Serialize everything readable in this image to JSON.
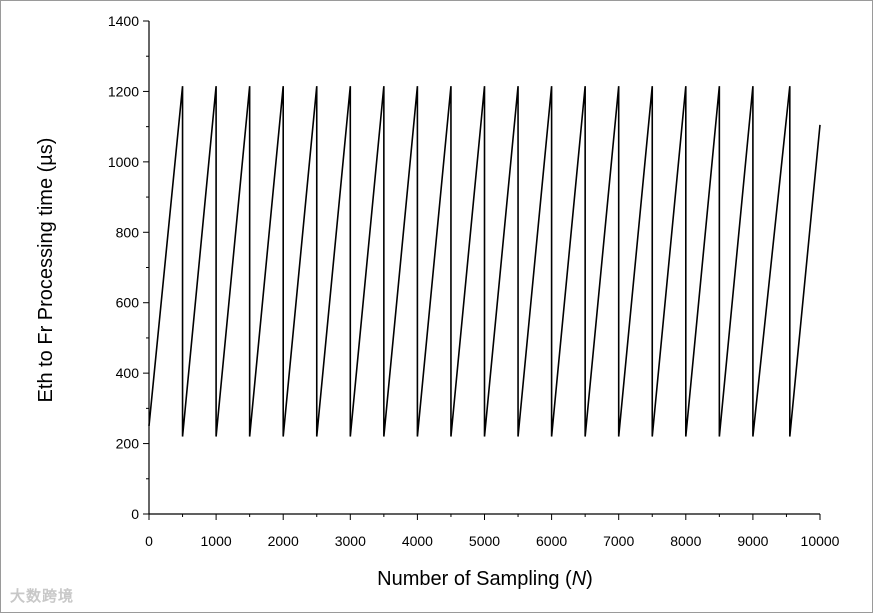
{
  "chart_data": {
    "type": "line",
    "xlabel": "Number of Sampling",
    "xlabel_var": "N",
    "ylabel": "Eth to Fr Processing time (µs)",
    "xlim": [
      0,
      10000
    ],
    "ylim": [
      0,
      1400
    ],
    "x_ticks": [
      0,
      1000,
      2000,
      3000,
      4000,
      5000,
      6000,
      7000,
      8000,
      9000,
      10000
    ],
    "y_ticks": [
      0,
      200,
      400,
      600,
      800,
      1000,
      1200,
      1400
    ],
    "grid": false,
    "series": [
      {
        "color": "#000000",
        "points": [
          [
            0,
            250
          ],
          [
            500,
            1215
          ],
          [
            500,
            220
          ],
          [
            1000,
            1215
          ],
          [
            1000,
            220
          ],
          [
            1500,
            1215
          ],
          [
            1500,
            220
          ],
          [
            2000,
            1215
          ],
          [
            2000,
            220
          ],
          [
            2500,
            1215
          ],
          [
            2500,
            220
          ],
          [
            3000,
            1215
          ],
          [
            3000,
            220
          ],
          [
            3500,
            1215
          ],
          [
            3500,
            220
          ],
          [
            4000,
            1215
          ],
          [
            4000,
            220
          ],
          [
            4500,
            1215
          ],
          [
            4500,
            220
          ],
          [
            5000,
            1215
          ],
          [
            5000,
            220
          ],
          [
            5500,
            1215
          ],
          [
            5500,
            220
          ],
          [
            6000,
            1215
          ],
          [
            6000,
            220
          ],
          [
            6500,
            1215
          ],
          [
            6500,
            220
          ],
          [
            7000,
            1215
          ],
          [
            7000,
            220
          ],
          [
            7500,
            1215
          ],
          [
            7500,
            220
          ],
          [
            8000,
            1215
          ],
          [
            8000,
            220
          ],
          [
            8500,
            1215
          ],
          [
            8500,
            220
          ],
          [
            9000,
            1215
          ],
          [
            9000,
            220
          ],
          [
            9550,
            1215
          ],
          [
            9550,
            220
          ],
          [
            10000,
            1105
          ]
        ]
      }
    ]
  },
  "watermark": "大数跨境"
}
